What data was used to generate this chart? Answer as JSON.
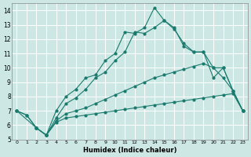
{
  "xlabel": "Humidex (Indice chaleur)",
  "bg_color": "#cde8e4",
  "line_color": "#1a7a6e",
  "grid_color": "#ffffff",
  "xlim": [
    -0.5,
    23.5
  ],
  "ylim": [
    5,
    14.5
  ],
  "yticks": [
    5,
    6,
    7,
    8,
    9,
    10,
    11,
    12,
    13,
    14
  ],
  "xticks": [
    0,
    1,
    2,
    3,
    4,
    5,
    6,
    7,
    8,
    9,
    10,
    11,
    12,
    13,
    14,
    15,
    16,
    17,
    18,
    19,
    20,
    21,
    22,
    23
  ],
  "line1_x": [
    0,
    1,
    2,
    3,
    4,
    5,
    6,
    7,
    8,
    9,
    10,
    11,
    12,
    13,
    14,
    15,
    16,
    17,
    18,
    19,
    20,
    21,
    22,
    23
  ],
  "line1_y": [
    7.0,
    6.7,
    5.8,
    5.3,
    6.2,
    6.5,
    6.6,
    6.7,
    6.8,
    6.9,
    7.0,
    7.1,
    7.2,
    7.3,
    7.4,
    7.5,
    7.6,
    7.7,
    7.8,
    7.9,
    8.0,
    8.1,
    8.2,
    7.0
  ],
  "line2_x": [
    0,
    1,
    2,
    3,
    4,
    5,
    6,
    7,
    8,
    9,
    10,
    11,
    12,
    13,
    14,
    15,
    16,
    17,
    18,
    19,
    20,
    21,
    22,
    23
  ],
  "line2_y": [
    7.0,
    6.7,
    5.8,
    5.3,
    6.3,
    6.8,
    7.0,
    7.2,
    7.5,
    7.8,
    8.1,
    8.4,
    8.7,
    9.0,
    9.3,
    9.5,
    9.7,
    9.9,
    10.1,
    10.3,
    10.0,
    9.3,
    8.4,
    7.0
  ],
  "line3_x": [
    0,
    2,
    3,
    4,
    5,
    6,
    7,
    8,
    9,
    10,
    11,
    12,
    13,
    14,
    15,
    16,
    17,
    18,
    19,
    20,
    21,
    22,
    23
  ],
  "line3_y": [
    7.0,
    5.8,
    5.3,
    6.5,
    7.5,
    7.9,
    8.5,
    9.3,
    9.7,
    10.5,
    11.1,
    12.5,
    12.4,
    12.8,
    13.3,
    12.7,
    11.7,
    11.1,
    11.1,
    10.0,
    10.0,
    8.4,
    7.0
  ],
  "line4_x": [
    2,
    3,
    4,
    5,
    6,
    7,
    8,
    9,
    10,
    11,
    12,
    13,
    14,
    15,
    16,
    17,
    18,
    19,
    20,
    21,
    22,
    23
  ],
  "line4_y": [
    5.8,
    5.3,
    7.0,
    8.0,
    8.5,
    9.3,
    9.5,
    10.5,
    11.0,
    12.5,
    12.4,
    12.8,
    14.2,
    13.3,
    12.8,
    11.5,
    11.1,
    11.1,
    9.3,
    10.0,
    8.4,
    7.0
  ]
}
